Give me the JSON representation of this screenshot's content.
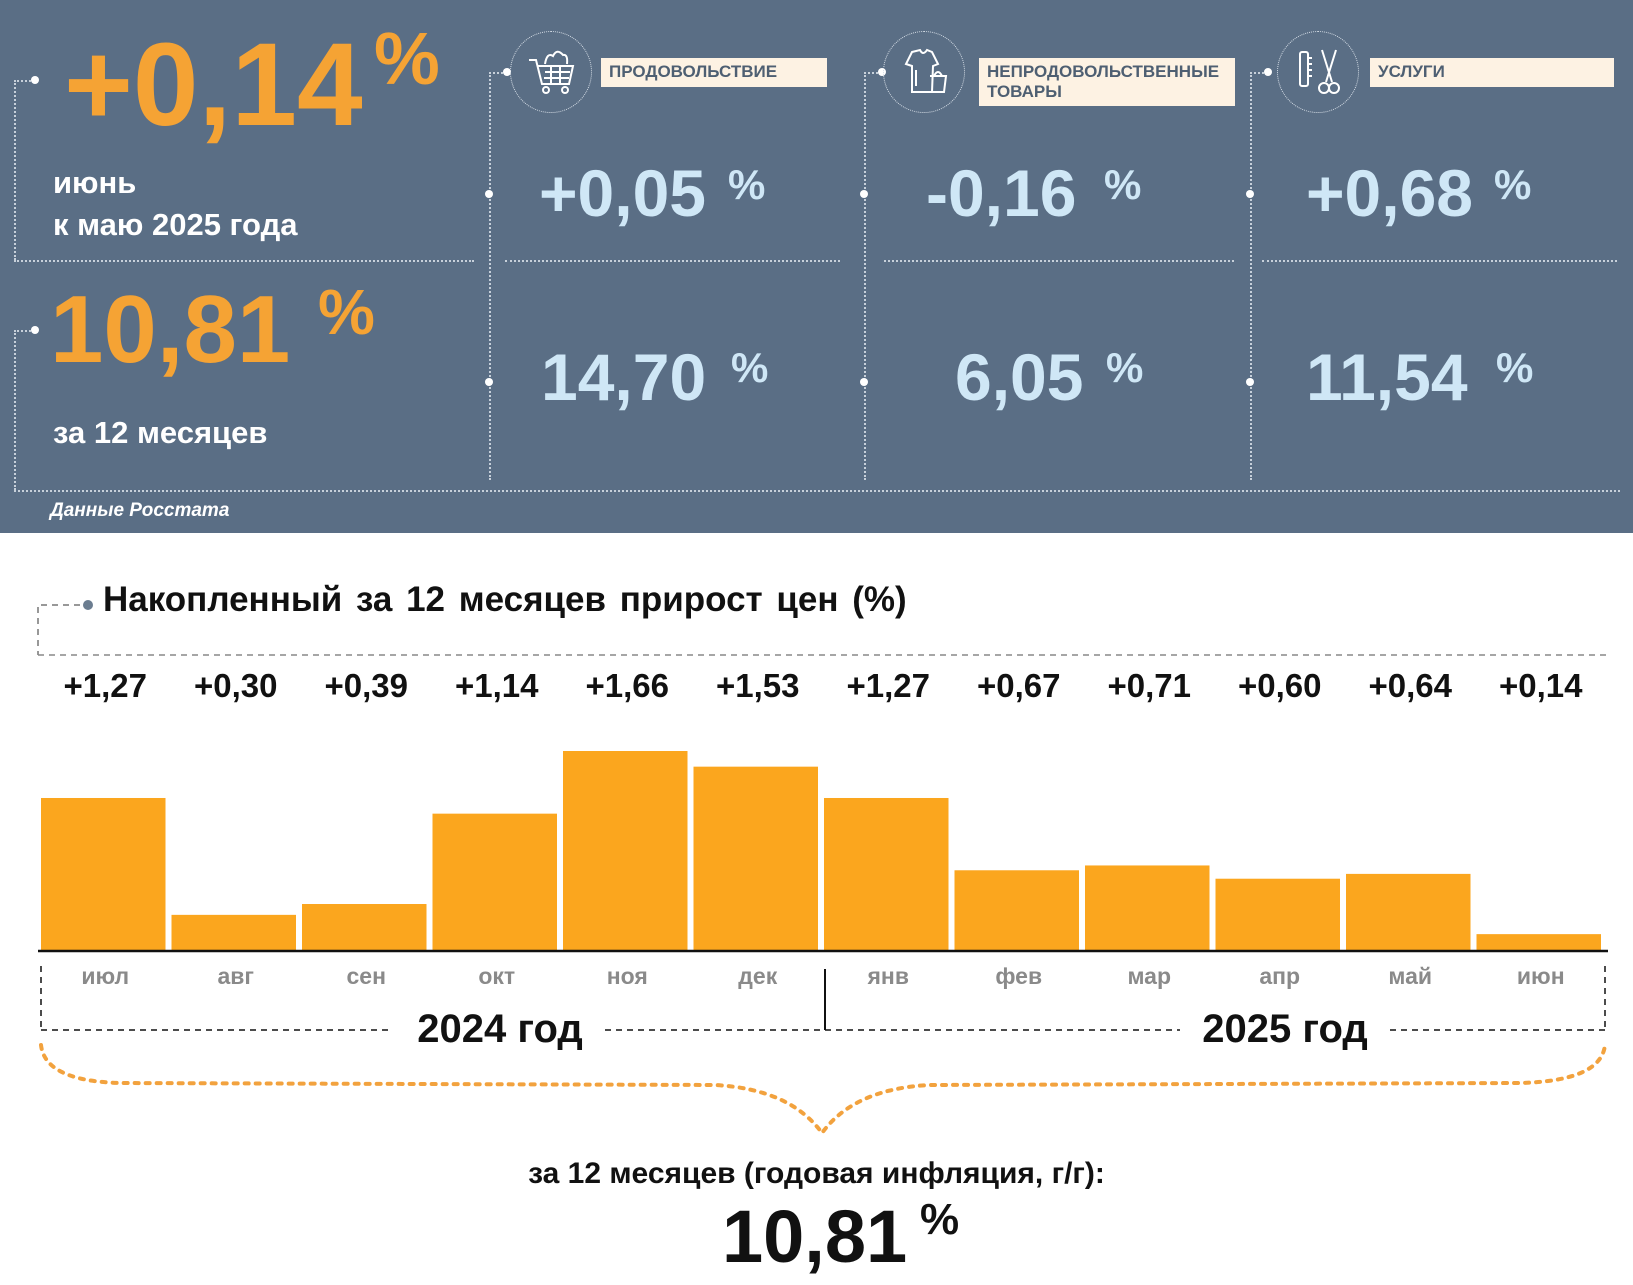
{
  "panel": {
    "monthly": {
      "value": "+0,14",
      "unit": "%",
      "label_line1": "июнь",
      "label_line2": "к маю 2025 года"
    },
    "annual": {
      "value": "10,81",
      "unit": "%",
      "label": "за 12 месяцев"
    },
    "categories": [
      {
        "icon": "shopping-cart-icon",
        "label": "ПРОДОВОЛЬСТВИЕ",
        "monthly": "+0,05",
        "annual": "14,70",
        "unit": "%"
      },
      {
        "icon": "clothing-icon",
        "label_line1": "НЕПРОДОВОЛЬСТВЕННЫЕ",
        "label_line2": "ТОВАРЫ",
        "monthly": "-0,16",
        "annual": "6,05",
        "unit": "%"
      },
      {
        "icon": "scissors-comb-icon",
        "label": "УСЛУГИ",
        "monthly": "+0,68",
        "annual": "11,54",
        "unit": "%"
      }
    ],
    "source": "Данные Росстата"
  },
  "colors": {
    "panel_bg": "#5a6e85",
    "accent_orange": "#f5a334",
    "bar_orange": "#fba61e",
    "light_blue": "#cfe7f6",
    "label_bg": "#fdf2e3"
  },
  "chart_data": {
    "type": "bar",
    "title": "Накопленный за 12 месяцев прирост цен (%)",
    "categories": [
      "июл",
      "авг",
      "сен",
      "окт",
      "ноя",
      "дек",
      "янв",
      "фев",
      "мар",
      "апр",
      "май",
      "июн"
    ],
    "values": [
      1.27,
      0.3,
      0.39,
      1.14,
      1.66,
      1.53,
      1.27,
      0.67,
      0.71,
      0.6,
      0.64,
      0.14
    ],
    "value_labels": [
      "+1,27",
      "+0,30",
      "+0,39",
      "+1,14",
      "+1,66",
      "+1,53",
      "+1,27",
      "+0,67",
      "+0,71",
      "+0,60",
      "+0,64",
      "+0,14"
    ],
    "years": [
      {
        "label": "2024 год",
        "months": [
          "июл",
          "авг",
          "сен",
          "окт",
          "ноя",
          "дек"
        ]
      },
      {
        "label": "2025 год",
        "months": [
          "янв",
          "фев",
          "мар",
          "апр",
          "май",
          "июн"
        ]
      }
    ],
    "total_caption": "за 12 месяцев (годовая инфляция, г/г):",
    "total_value": "10,81",
    "total_unit": "%"
  }
}
